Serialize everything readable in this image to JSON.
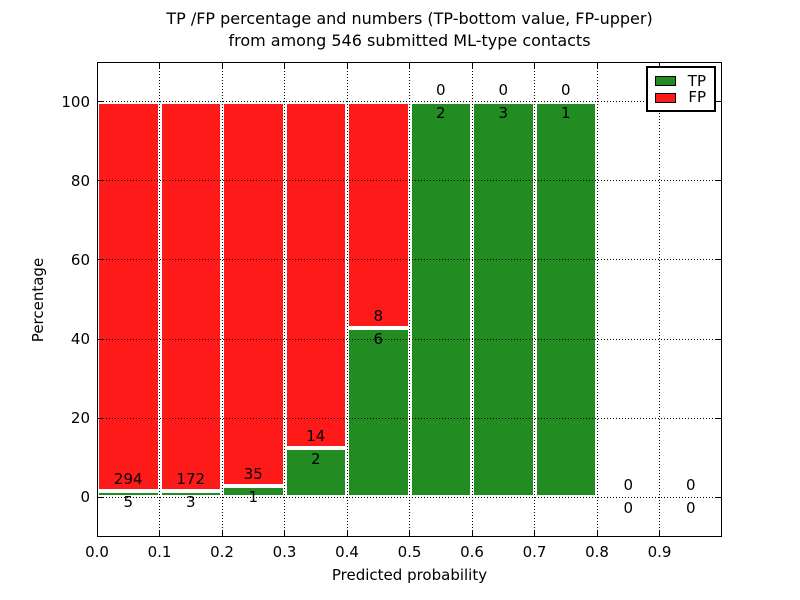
{
  "chart_data": {
    "type": "bar",
    "stacked": true,
    "title_line1": "TP /FP percentage and numbers (TP-bottom value, FP-upper)",
    "title_line2": "from among 546 submitted ML-type contacts",
    "total_submitted": 546,
    "xlabel": "Predicted probability",
    "ylabel": "Percentage",
    "xlim": [
      0.0,
      1.0
    ],
    "ylim": [
      -10,
      110
    ],
    "xticks": [
      {
        "value": 0.0,
        "label": "0.0"
      },
      {
        "value": 0.1,
        "label": "0.1"
      },
      {
        "value": 0.2,
        "label": "0.2"
      },
      {
        "value": 0.3,
        "label": "0.3"
      },
      {
        "value": 0.4,
        "label": "0.4"
      },
      {
        "value": 0.5,
        "label": "0.5"
      },
      {
        "value": 0.6,
        "label": "0.6"
      },
      {
        "value": 0.7,
        "label": "0.7"
      },
      {
        "value": 0.8,
        "label": "0.8"
      },
      {
        "value": 0.9,
        "label": "0.9"
      }
    ],
    "yticks": [
      {
        "value": 0,
        "label": "0"
      },
      {
        "value": 20,
        "label": "20"
      },
      {
        "value": 40,
        "label": "40"
      },
      {
        "value": 60,
        "label": "60"
      },
      {
        "value": 80,
        "label": "80"
      },
      {
        "value": 100,
        "label": "100"
      }
    ],
    "grid": "dotted",
    "colors": {
      "tp": "#228b22",
      "fp": "#ff1a1a",
      "bar_edge": "#ffffff",
      "grid": "#000000"
    },
    "legend": {
      "position": "upper right",
      "entries": [
        {
          "label": "TP",
          "color_key": "tp"
        },
        {
          "label": "FP",
          "color_key": "fp"
        }
      ]
    },
    "bins": [
      {
        "range": [
          0.0,
          0.1
        ],
        "tp": 5,
        "fp": 294,
        "tp_pct": 1.67,
        "fp_pct": 98.33
      },
      {
        "range": [
          0.1,
          0.2
        ],
        "tp": 3,
        "fp": 172,
        "tp_pct": 1.71,
        "fp_pct": 98.29
      },
      {
        "range": [
          0.2,
          0.3
        ],
        "tp": 1,
        "fp": 35,
        "tp_pct": 2.78,
        "fp_pct": 97.22
      },
      {
        "range": [
          0.3,
          0.4
        ],
        "tp": 2,
        "fp": 14,
        "tp_pct": 12.5,
        "fp_pct": 87.5
      },
      {
        "range": [
          0.4,
          0.5
        ],
        "tp": 6,
        "fp": 8,
        "tp_pct": 42.86,
        "fp_pct": 57.14
      },
      {
        "range": [
          0.5,
          0.6
        ],
        "tp": 2,
        "fp": 0,
        "tp_pct": 100,
        "fp_pct": 0
      },
      {
        "range": [
          0.6,
          0.7
        ],
        "tp": 3,
        "fp": 0,
        "tp_pct": 100,
        "fp_pct": 0
      },
      {
        "range": [
          0.7,
          0.8
        ],
        "tp": 1,
        "fp": 0,
        "tp_pct": 100,
        "fp_pct": 0
      },
      {
        "range": [
          0.8,
          0.9
        ],
        "tp": 0,
        "fp": 0,
        "tp_pct": 0,
        "fp_pct": 0
      },
      {
        "range": [
          0.9,
          1.0
        ],
        "tp": 0,
        "fp": 0,
        "tp_pct": 0,
        "fp_pct": 0
      }
    ]
  }
}
